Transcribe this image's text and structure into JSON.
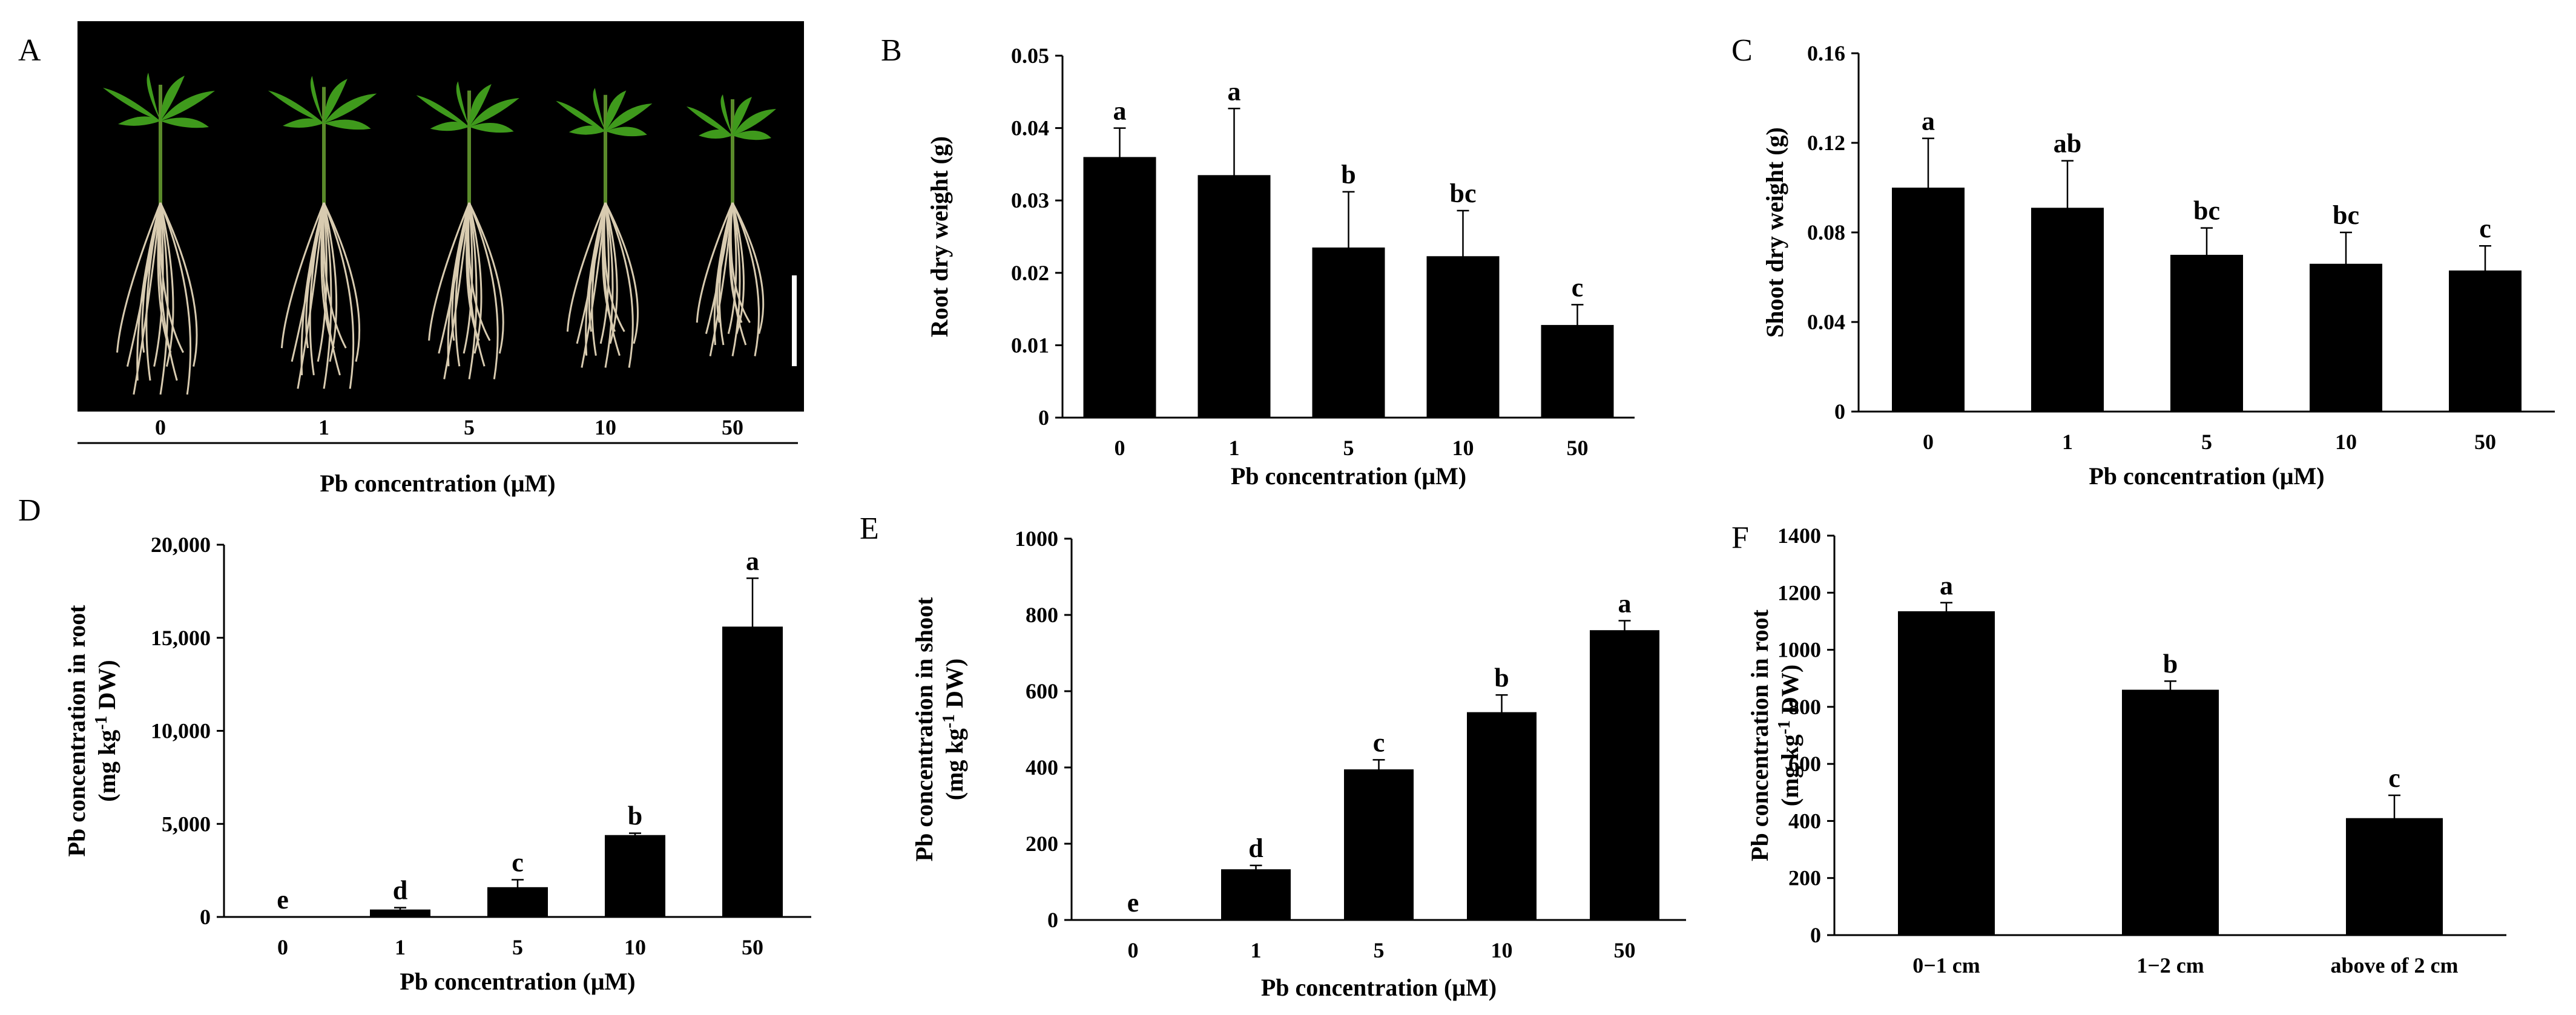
{
  "figure": {
    "panel_a": {
      "label": "A",
      "treatments": [
        "0",
        "1",
        "5",
        "10",
        "50"
      ],
      "xlabel": "Pb concentration (μM)"
    }
  },
  "colors": {
    "bar": "#000000",
    "photo_bg": "#000000",
    "leaf": "#3f9a1c",
    "root": "#d8cbb0"
  },
  "chart_data": [
    {
      "panel": "B",
      "type": "bar",
      "categories": [
        "0",
        "1",
        "5",
        "10",
        "50"
      ],
      "values": [
        0.036,
        0.0335,
        0.0235,
        0.0223,
        0.0128
      ],
      "errors": [
        0.004,
        0.0092,
        0.0077,
        0.0063,
        0.0028
      ],
      "letters": [
        "a",
        "a",
        "b",
        "bc",
        "c"
      ],
      "ylabel": "Root dry weight (g)",
      "ylabel_sup": "",
      "xlabel": "Pb concentration (μM)",
      "ylim": [
        0,
        0.05
      ],
      "yticks": [
        "0",
        "0.01",
        "0.02",
        "0.03",
        "0.04",
        "0.05"
      ]
    },
    {
      "panel": "C",
      "type": "bar",
      "categories": [
        "0",
        "1",
        "5",
        "10",
        "50"
      ],
      "values": [
        0.1,
        0.091,
        0.07,
        0.066,
        0.063
      ],
      "errors": [
        0.022,
        0.021,
        0.012,
        0.014,
        0.011
      ],
      "letters": [
        "a",
        "ab",
        "bc",
        "bc",
        "c"
      ],
      "ylabel": "Shoot dry weight (g)",
      "ylabel_sup": "",
      "xlabel": "Pb concentration (μM)",
      "ylim": [
        0,
        0.16
      ],
      "yticks": [
        "0",
        "0.04",
        "0.08",
        "0.12",
        "0.16"
      ]
    },
    {
      "panel": "D",
      "type": "bar",
      "categories": [
        "0",
        "1",
        "5",
        "10",
        "50"
      ],
      "values": [
        0,
        400,
        1600,
        4400,
        15600
      ],
      "errors": [
        0,
        100,
        400,
        100,
        2600
      ],
      "letters": [
        "e",
        "d",
        "c",
        "b",
        "a"
      ],
      "ylabel": "Pb concentration in root",
      "ylabel2": "(mg kg",
      "ylabel_sup": "-1",
      "ylabel3": " DW)",
      "xlabel": "Pb concentration (μM)",
      "ylim": [
        0,
        20000
      ],
      "yticks": [
        "0",
        "5,000",
        "10,000",
        "15,000",
        "20,000"
      ]
    },
    {
      "panel": "E",
      "type": "bar",
      "categories": [
        "0",
        "1",
        "5",
        "10",
        "50"
      ],
      "values": [
        0,
        133,
        395,
        545,
        760
      ],
      "errors": [
        0,
        10,
        25,
        45,
        25
      ],
      "letters": [
        "e",
        "d",
        "c",
        "b",
        "a"
      ],
      "ylabel": "Pb concentration in shoot",
      "ylabel2": "(mg kg",
      "ylabel_sup": "-1",
      "ylabel3": " DW)",
      "xlabel": "Pb concentration (μM)",
      "ylim": [
        0,
        1000
      ],
      "yticks": [
        "0",
        "200",
        "400",
        "600",
        "800",
        "1000"
      ]
    },
    {
      "panel": "F",
      "type": "bar",
      "categories": [
        "0−1 cm",
        "1−2 cm",
        "above of 2 cm"
      ],
      "values": [
        1135,
        860,
        410
      ],
      "errors": [
        30,
        30,
        80
      ],
      "letters": [
        "a",
        "b",
        "c"
      ],
      "ylabel": "Pb concentration in root",
      "ylabel2": "(mg kg",
      "ylabel_sup": "-1",
      "ylabel3": " DW)",
      "xlabel": "",
      "ylim": [
        0,
        1400
      ],
      "yticks": [
        "0",
        "200",
        "400",
        "600",
        "800",
        "1000",
        "1200",
        "1400"
      ]
    }
  ]
}
